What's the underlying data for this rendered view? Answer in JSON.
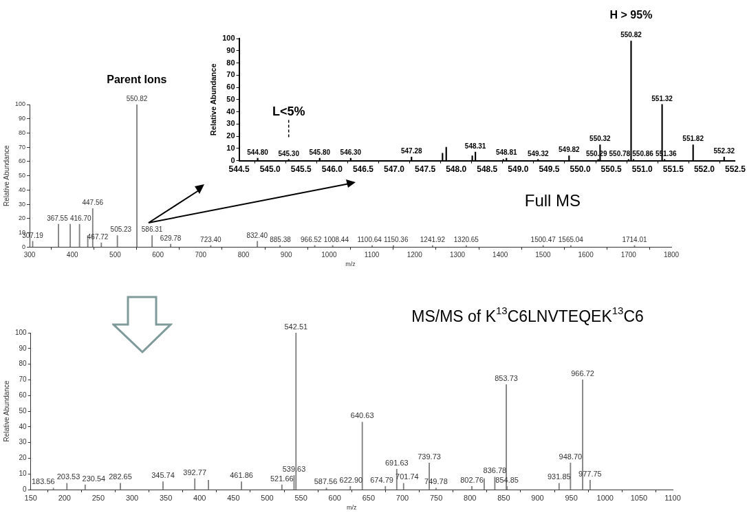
{
  "chart_data": [
    {
      "type": "bar",
      "ylabel": "Relative Abundance",
      "color": "#000000",
      "x": [
        544.8,
        545.3,
        545.8,
        546.3,
        547.28,
        547.78,
        547.84,
        548.26,
        548.31,
        548.76,
        548.81,
        549.32,
        549.82,
        550.29,
        550.32,
        550.78,
        550.82,
        550.86,
        551.32,
        551.36,
        551.82,
        552.32
      ],
      "values": [
        2,
        1,
        2,
        2,
        3,
        6,
        11,
        4,
        7,
        1,
        2,
        1,
        4,
        1,
        13,
        1,
        98,
        1,
        46,
        1,
        13,
        3
      ],
      "xlim": [
        544.5,
        552.5
      ],
      "xticks": [
        544.5,
        {
          "value": 545,
          "label": "545.0"
        },
        545.5,
        {
          "value": 546,
          "label": "546.0"
        },
        546.5,
        {
          "value": 547,
          "label": "547.0"
        },
        547.5,
        {
          "value": 548,
          "label": "548.0"
        },
        548.5,
        {
          "value": 549,
          "label": "549.0"
        },
        549.5,
        {
          "value": 550,
          "label": "550.0"
        },
        550.5,
        {
          "value": 551,
          "label": "551.0"
        },
        551.5,
        {
          "value": 552,
          "label": "552.0"
        },
        552.5
      ],
      "ylim": [
        0,
        100
      ],
      "yticks": [
        0,
        10,
        20,
        30,
        40,
        50,
        60,
        70,
        80,
        90,
        100
      ],
      "annotations": [
        "L<5%",
        "H > 95%",
        {
          "text": "544.80",
          "x": 544.8,
          "y": 2
        },
        {
          "text": "545.30",
          "x": 545.3,
          "y": 1
        },
        {
          "text": "545.80",
          "x": 545.8,
          "y": 2
        },
        {
          "text": "546.30",
          "x": 546.3,
          "y": 2
        },
        {
          "text": "547.28",
          "x": 547.28,
          "y": 3
        },
        {
          "text": "548.31",
          "x": 548.31,
          "y": 7
        },
        {
          "text": "548.81",
          "x": 548.81,
          "y": 2
        },
        {
          "text": "549.32",
          "x": 549.32,
          "y": 1
        },
        {
          "text": "549.82",
          "x": 549.82,
          "y": 4
        },
        {
          "text": "550.29",
          "x": 550.29,
          "y": 1
        },
        {
          "text": "550.32",
          "x": 550.32,
          "y": 13
        },
        {
          "text": "550.78",
          "x": 550.78,
          "y": 1
        },
        {
          "text": "550.82",
          "x": 550.82,
          "y": 98
        },
        {
          "text": "550.86",
          "x": 550.86,
          "y": 1
        },
        {
          "text": "551.32",
          "x": 551.32,
          "y": 46
        },
        {
          "text": "551.36",
          "x": 551.36,
          "y": 1
        },
        {
          "text": "551.82",
          "x": 551.82,
          "y": 13
        },
        {
          "text": "552.32",
          "x": 552.32,
          "y": 3
        }
      ]
    },
    {
      "type": "bar",
      "title": "Full MS",
      "xlabel": "m/z",
      "ylabel": "Relative Abundance",
      "color": "#808080",
      "x": [
        307.19,
        367.55,
        395.0,
        416.7,
        436.0,
        447.56,
        467.72,
        505.23,
        550.82,
        586.31,
        629.78,
        723.4,
        832.4,
        885.38,
        966.52,
        1008.44,
        1100.64,
        1150.36,
        1241.92,
        1320.65,
        1500.47,
        1565.04,
        1714.01
      ],
      "values": [
        4,
        16,
        16,
        16,
        8,
        27,
        3,
        8,
        100,
        8,
        2,
        1,
        4,
        1,
        1,
        1,
        1,
        1,
        1,
        1,
        1,
        1,
        1
      ],
      "xlim": [
        300,
        1800
      ],
      "xticks": [
        300,
        400,
        500,
        600,
        700,
        800,
        900,
        1000,
        1100,
        1200,
        1300,
        1400,
        1500,
        1600,
        1700,
        1800
      ],
      "ylim": [
        0,
        100
      ],
      "yticks": [
        0,
        10,
        20,
        30,
        40,
        50,
        60,
        70,
        80,
        90,
        100
      ],
      "annotations": [
        "Parent Ions",
        {
          "text": "307.19",
          "x": 307.19,
          "y": 4
        },
        {
          "text": "367.55",
          "x": 367.55,
          "y": 16
        },
        {
          "text": "416.70",
          "x": 416.7,
          "y": 16
        },
        {
          "text": "447.56",
          "x": 447.56,
          "y": 27
        },
        {
          "text": "467.72",
          "x": 467.72,
          "y": 3
        },
        {
          "text": "505.23",
          "x": 505.23,
          "y": 8
        },
        {
          "text": "550.82",
          "x": 550.82,
          "y": 100
        },
        {
          "text": "586.31",
          "x": 586.31,
          "y": 8
        },
        {
          "text": "629.78",
          "x": 629.78,
          "y": 2
        },
        {
          "text": "723.40",
          "x": 723.4,
          "y": 1
        },
        {
          "text": "832.40",
          "x": 832.4,
          "y": 4
        },
        {
          "text": "885.38",
          "x": 885.38,
          "y": 1
        },
        {
          "text": "966.52",
          "x": 966.52,
          "y": 1
        },
        {
          "text": "1008.44",
          "x": 1008.44,
          "y": 1
        },
        {
          "text": "1100.64",
          "x": 1100.64,
          "y": 1
        },
        {
          "text": "1150.36",
          "x": 1150.36,
          "y": 1
        },
        {
          "text": "1241.92",
          "x": 1241.92,
          "y": 1
        },
        {
          "text": "1320.65",
          "x": 1320.65,
          "y": 1
        },
        {
          "text": "1500.47",
          "x": 1500.47,
          "y": 1
        },
        {
          "text": "1565.04",
          "x": 1565.04,
          "y": 1
        },
        {
          "text": "1714.01",
          "x": 1714.01,
          "y": 1
        }
      ]
    },
    {
      "type": "bar",
      "title": "MS/MS of K$^{13}$C6LNVTEQEK$^{13}$C6",
      "xlabel": "m/z",
      "ylabel": "Relative Abundance",
      "color": "#808080",
      "x": [
        183.56,
        203.53,
        230.54,
        282.65,
        345.74,
        392.77,
        413.0,
        461.86,
        521.66,
        539.63,
        542.51,
        587.56,
        622.9,
        640.63,
        674.79,
        691.63,
        701.74,
        739.73,
        749.78,
        802.76,
        821.0,
        836.78,
        853.73,
        854.85,
        931.85,
        948.7,
        966.72,
        977.75
      ],
      "values": [
        1,
        4,
        3,
        4,
        5,
        7,
        6,
        5,
        3,
        9,
        100,
        1,
        2,
        43,
        2,
        13,
        4,
        17,
        1,
        2,
        7,
        8,
        67,
        2,
        4,
        17,
        70,
        6
      ],
      "xlim": [
        150,
        1100
      ],
      "xticks": [
        150,
        200,
        250,
        300,
        350,
        400,
        450,
        500,
        550,
        600,
        650,
        700,
        750,
        800,
        850,
        900,
        950,
        1000,
        1050,
        1100
      ],
      "ylim": [
        0,
        100
      ],
      "yticks": [
        0,
        10,
        20,
        30,
        40,
        50,
        60,
        70,
        80,
        90,
        100
      ],
      "annotations": [
        {
          "text": "183.56",
          "x": 183.56,
          "y": 1
        },
        {
          "text": "203.53",
          "x": 203.53,
          "y": 4
        },
        {
          "text": "230.54",
          "x": 230.54,
          "y": 3
        },
        {
          "text": "282.65",
          "x": 282.65,
          "y": 4
        },
        {
          "text": "345.74",
          "x": 345.74,
          "y": 5
        },
        {
          "text": "392.77",
          "x": 392.77,
          "y": 7
        },
        {
          "text": "461.86",
          "x": 461.86,
          "y": 5
        },
        {
          "text": "521.66",
          "x": 521.66,
          "y": 3
        },
        {
          "text": "539.63",
          "x": 539.63,
          "y": 9
        },
        {
          "text": "542.51",
          "x": 542.51,
          "y": 100
        },
        {
          "text": "587.56",
          "x": 587.56,
          "y": 1
        },
        {
          "text": "622.90",
          "x": 622.9,
          "y": 2
        },
        {
          "text": "640.63",
          "x": 640.63,
          "y": 43
        },
        {
          "text": "674.79",
          "x": 674.79,
          "y": 2
        },
        {
          "text": "691.63",
          "x": 691.63,
          "y": 13
        },
        {
          "text": "701.74",
          "x": 701.74,
          "y": 4
        },
        {
          "text": "739.73",
          "x": 739.73,
          "y": 17
        },
        {
          "text": "749.78",
          "x": 749.78,
          "y": 1
        },
        {
          "text": "802.76",
          "x": 802.76,
          "y": 2
        },
        {
          "text": "836.78",
          "x": 836.78,
          "y": 8
        },
        {
          "text": "853.73",
          "x": 853.73,
          "y": 67
        },
        {
          "text": "854.85",
          "x": 854.85,
          "y": 2
        },
        {
          "text": "931.85",
          "x": 931.85,
          "y": 4
        },
        {
          "text": "948.70",
          "x": 948.7,
          "y": 17
        },
        {
          "text": "966.72",
          "x": 966.72,
          "y": 70
        },
        {
          "text": "977.75",
          "x": 977.75,
          "y": 6
        }
      ]
    }
  ]
}
